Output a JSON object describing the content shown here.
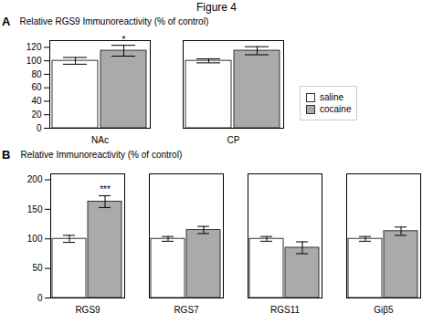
{
  "title": "Figure 4",
  "chart_data": [
    {
      "type": "bar",
      "title": "A",
      "categories": [
        "NAc",
        "CP"
      ],
      "ylabel": "Relative RGS9 Immunoreactivity (% of control)",
      "ylim": [
        0,
        130
      ],
      "yticks": [
        0,
        20,
        40,
        60,
        80,
        100,
        120
      ],
      "legend": "right",
      "series": [
        {
          "name": "saline",
          "color": "#ffffff",
          "values": [
            100,
            100
          ],
          "errors": [
            5,
            3
          ]
        },
        {
          "name": "cocaine",
          "color": "#aaaaaa",
          "values": [
            115,
            115
          ],
          "errors": [
            8,
            6
          ],
          "annotations": [
            "*",
            null
          ]
        }
      ]
    },
    {
      "type": "bar",
      "title": "B",
      "categories": [
        "RGS9",
        "RGS7",
        "RGS11",
        "Giβ5"
      ],
      "ylabel": "Relative Immunoreactivity (% of control)",
      "ylim": [
        0,
        210
      ],
      "yticks": [
        0,
        50,
        100,
        150,
        200
      ],
      "series": [
        {
          "name": "saline",
          "color": "#ffffff",
          "values": [
            100,
            100,
            100,
            100
          ],
          "errors": [
            6,
            4,
            4,
            4
          ]
        },
        {
          "name": "cocaine",
          "color": "#aaaaaa",
          "values": [
            163,
            115,
            85,
            113
          ],
          "errors": [
            10,
            6,
            10,
            7
          ],
          "annotations": [
            "***",
            null,
            null,
            null
          ]
        }
      ]
    }
  ]
}
